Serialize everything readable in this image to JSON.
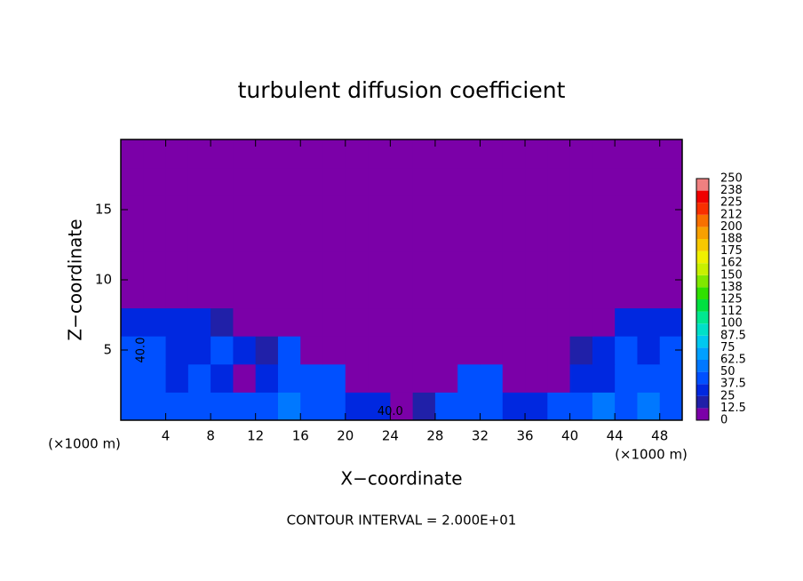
{
  "chart_data": {
    "type": "contour",
    "title": "turbulent diffusion coefficient",
    "x_label": "X−coordinate",
    "y_label": "Z−coordinate",
    "x_unit": "(×1000 m)",
    "y_unit": "(×1000 m)",
    "footnote": "CONTOUR INTERVAL = 2.000E+01",
    "xlim": [
      0,
      50
    ],
    "ylim": [
      0,
      20
    ],
    "xticks": [
      4,
      8,
      12,
      16,
      20,
      24,
      28,
      32,
      36,
      40,
      44,
      48
    ],
    "yticks": [
      5,
      10,
      15
    ],
    "x": [
      1,
      3,
      5,
      7,
      9,
      11,
      13,
      15,
      17,
      19,
      21,
      23,
      25,
      27,
      29,
      31,
      33,
      35,
      37,
      39,
      41,
      43,
      45,
      47,
      49
    ],
    "z": [
      1,
      3,
      5,
      7,
      9,
      11,
      13,
      15,
      17,
      19
    ],
    "values": [
      [
        45,
        45,
        40,
        45,
        40,
        45,
        40,
        50,
        40,
        45,
        25,
        30,
        10,
        15,
        40,
        45,
        40,
        25,
        30,
        40,
        45,
        50,
        45,
        50,
        45
      ],
      [
        45,
        40,
        35,
        40,
        30,
        10,
        35,
        45,
        40,
        40,
        10,
        5,
        5,
        10,
        10,
        40,
        45,
        10,
        5,
        10,
        35,
        30,
        40,
        45,
        40
      ],
      [
        40,
        40,
        35,
        35,
        40,
        35,
        20,
        40,
        10,
        5,
        0,
        0,
        0,
        5,
        0,
        0,
        0,
        0,
        5,
        10,
        20,
        30,
        40,
        35,
        40
      ],
      [
        35,
        30,
        30,
        25,
        15,
        10,
        5,
        0,
        0,
        0,
        0,
        0,
        0,
        0,
        0,
        0,
        0,
        0,
        0,
        0,
        5,
        10,
        30,
        30,
        35
      ],
      [
        5,
        0,
        0,
        0,
        0,
        0,
        0,
        0,
        0,
        0,
        0,
        0,
        0,
        0,
        0,
        0,
        0,
        0,
        0,
        0,
        0,
        0,
        0,
        0,
        5
      ],
      [
        0,
        0,
        0,
        0,
        0,
        0,
        0,
        0,
        0,
        0,
        0,
        0,
        0,
        0,
        0,
        0,
        0,
        0,
        0,
        0,
        0,
        0,
        0,
        0,
        0
      ],
      [
        0,
        0,
        0,
        0,
        0,
        0,
        0,
        0,
        0,
        0,
        0,
        0,
        0,
        0,
        0,
        0,
        0,
        0,
        0,
        0,
        0,
        0,
        0,
        0,
        0
      ],
      [
        0,
        0,
        0,
        0,
        0,
        0,
        0,
        0,
        0,
        0,
        0,
        0,
        0,
        0,
        0,
        0,
        0,
        0,
        0,
        0,
        0,
        0,
        0,
        0,
        0
      ],
      [
        0,
        0,
        0,
        0,
        0,
        0,
        0,
        0,
        0,
        0,
        0,
        0,
        0,
        0,
        0,
        0,
        0,
        0,
        0,
        0,
        0,
        0,
        0,
        0,
        0
      ],
      [
        0,
        0,
        0,
        0,
        0,
        0,
        0,
        0,
        0,
        0,
        0,
        0,
        0,
        0,
        0,
        0,
        0,
        0,
        0,
        0,
        0,
        0,
        0,
        0,
        0
      ]
    ],
    "contour_labels": [
      {
        "x": 1.8,
        "z": 5,
        "value": 40,
        "label": "40.0"
      },
      {
        "x": 24,
        "z": 0.6,
        "value": 40,
        "label": "40.0"
      }
    ],
    "colorbar": {
      "ticks": [
        0,
        12.5,
        25,
        37.5,
        50,
        62.5,
        75,
        87.5,
        100,
        {
          "value": 112.5,
          "label": "112"
        },
        125,
        {
          "value": 137.5,
          "label": "138"
        },
        150,
        {
          "value": 162.5,
          "label": "162"
        },
        175,
        {
          "value": 187.5,
          "label": "188"
        },
        200,
        {
          "value": 212.5,
          "label": "212"
        },
        225,
        {
          "value": 237.5,
          "label": "238"
        },
        250
      ],
      "colors": [
        "#7b00a8",
        "#2020a8",
        "#0028e0",
        "#0050ff",
        "#0078ff",
        "#00a0ff",
        "#00c8f0",
        "#00e0c8",
        "#00e890",
        "#00e040",
        "#30e000",
        "#80e800",
        "#c8f000",
        "#f0f000",
        "#f8c800",
        "#f8a000",
        "#f87000",
        "#f83000",
        "#f00000",
        "#f08080"
      ]
    }
  }
}
